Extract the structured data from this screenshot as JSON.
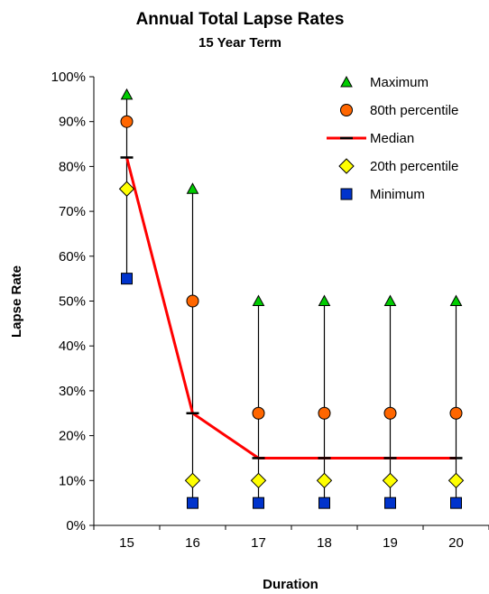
{
  "chart_data": {
    "type": "scatter",
    "title": "Annual Total Lapse Rates",
    "subtitle": "15 Year Term",
    "xlabel": "Duration",
    "ylabel": "Lapse Rate",
    "categories": [
      "15",
      "16",
      "17",
      "18",
      "19",
      "20"
    ],
    "y_ticks": [
      "0%",
      "10%",
      "20%",
      "30%",
      "40%",
      "50%",
      "60%",
      "70%",
      "80%",
      "90%",
      "100%"
    ],
    "ylim": [
      0,
      1
    ],
    "grid": false,
    "legend_position": "top-right",
    "series": [
      {
        "name": "Maximum",
        "marker": "triangle",
        "color": "#00cc00",
        "values": [
          0.96,
          0.75,
          0.5,
          0.5,
          0.5,
          0.5
        ]
      },
      {
        "name": "80th percentile",
        "marker": "circle",
        "color": "#ff6600",
        "values": [
          0.9,
          0.5,
          0.25,
          0.25,
          0.25,
          0.25
        ]
      },
      {
        "name": "Median",
        "marker": "dash",
        "color": "#ff0000",
        "line": true,
        "values": [
          0.82,
          0.25,
          0.15,
          0.15,
          0.15,
          0.15
        ]
      },
      {
        "name": "20th percentile",
        "marker": "diamond",
        "color": "#ffff00",
        "values": [
          0.75,
          0.1,
          0.1,
          0.1,
          0.1,
          0.1
        ]
      },
      {
        "name": "Minimum",
        "marker": "square",
        "color": "#0033cc",
        "values": [
          0.55,
          0.05,
          0.05,
          0.05,
          0.05,
          0.05
        ]
      }
    ]
  }
}
